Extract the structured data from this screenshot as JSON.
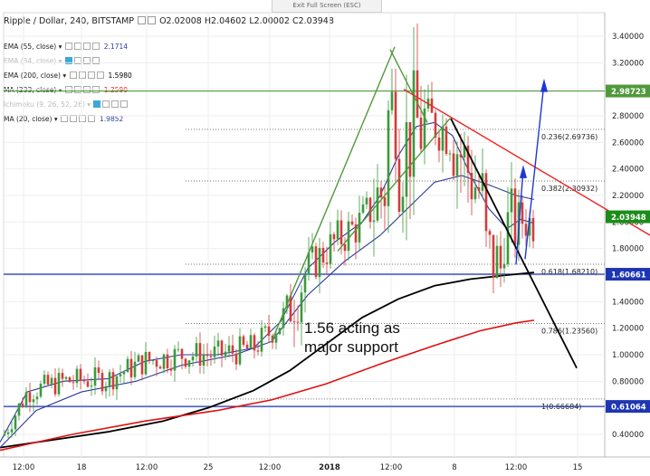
{
  "exit_fullscreen": "Exit Full Screen (ESC)",
  "header": {
    "symbol": "Ripple / Dollar, 240, BITSTAMP",
    "ohlc": {
      "o": "O2.02008",
      "h": "H2.04602",
      "l": "L2.00002",
      "c": "C2.03948"
    }
  },
  "indicators": [
    {
      "label": "EMA (55, close)",
      "value": "2.1714",
      "color": "#2a3a9a"
    },
    {
      "label": "EMA (34, close)",
      "value": "",
      "color": "#bbbbbb",
      "faded": true
    },
    {
      "label": "EMA (200, close)",
      "value": "1.5980",
      "color": "#000000"
    },
    {
      "label": "MA (233, close)",
      "value": "1.2590",
      "color": "#e01010"
    },
    {
      "label": "Ichimoku (9, 26, 52, 26)",
      "value": "",
      "color": "#bbbbbb",
      "faded": true
    },
    {
      "label": "MA (20, close)",
      "value": "1.9852",
      "color": "#2a3a9a"
    }
  ],
  "chart_data": {
    "type": "candlestick",
    "symbol": "XRP/USD",
    "interval": "240",
    "y_axis": {
      "range": [
        0.3,
        3.5
      ],
      "ticks": [
        "3.40000",
        "3.20000",
        "3.00000",
        "2.80000",
        "2.60000",
        "2.40000",
        "2.20000",
        "2.00000",
        "1.80000",
        "1.60000",
        "1.40000",
        "1.20000",
        "1.00000",
        "0.80000",
        "0.60000",
        "0.40000"
      ]
    },
    "x_axis": {
      "ticks": [
        "12:00",
        "18",
        "12:00",
        "25",
        "12:00",
        "2018",
        "12:00",
        "8",
        "12:00",
        "15"
      ]
    },
    "price_labels": [
      {
        "value": "2.98723",
        "price": 2.98723,
        "color": "#4f9a3c"
      },
      {
        "value": "2.03948",
        "price": 2.03948,
        "color": "#1a8c1a"
      },
      {
        "value": "1.60661",
        "price": 1.60661,
        "color": "#1e36b4"
      },
      {
        "value": "0.61064",
        "price": 0.61064,
        "color": "#1e36b4"
      }
    ],
    "fib_levels": [
      {
        "label": "0.236(2.69736)",
        "price": 2.69736
      },
      {
        "label": "0.382(2.30932)",
        "price": 2.30932
      },
      {
        "label": "0.618(1.68210)",
        "price": 1.6821
      },
      {
        "label": "0.786(1.23560)",
        "price": 1.2356
      },
      {
        "label": "1(0.66684)",
        "price": 0.66684
      }
    ],
    "horizontal_lines": [
      {
        "price": 2.98723,
        "color": "#4f9a3c"
      },
      {
        "price": 1.60661,
        "color": "#1e36b4"
      },
      {
        "price": 0.61064,
        "color": "#1e36b4"
      }
    ],
    "annotation": {
      "line1": "1.56 acting as",
      "line2": "major support"
    },
    "series": [
      {
        "name": "EMA (200, close)",
        "color": "#000000",
        "points": [
          [
            0,
            0.3
          ],
          [
            60,
            0.36
          ],
          [
            120,
            0.42
          ],
          [
            180,
            0.5
          ],
          [
            230,
            0.6
          ],
          [
            280,
            0.73
          ],
          [
            320,
            0.88
          ],
          [
            360,
            1.08
          ],
          [
            400,
            1.28
          ],
          [
            440,
            1.42
          ],
          [
            480,
            1.52
          ],
          [
            520,
            1.57
          ],
          [
            560,
            1.6
          ],
          [
            590,
            1.62
          ]
        ]
      },
      {
        "name": "MA (233, close)",
        "color": "#e01010",
        "points": [
          [
            0,
            0.28
          ],
          [
            80,
            0.4
          ],
          [
            160,
            0.5
          ],
          [
            240,
            0.58
          ],
          [
            300,
            0.66
          ],
          [
            360,
            0.78
          ],
          [
            420,
            0.93
          ],
          [
            480,
            1.07
          ],
          [
            530,
            1.18
          ],
          [
            570,
            1.24
          ],
          [
            590,
            1.26
          ]
        ]
      },
      {
        "name": "EMA (55, close)",
        "color": "#2a3a9a",
        "points": [
          [
            0,
            0.3
          ],
          [
            40,
            0.58
          ],
          [
            90,
            0.72
          ],
          [
            150,
            0.8
          ],
          [
            200,
            0.92
          ],
          [
            260,
            1.0
          ],
          [
            300,
            1.1
          ],
          [
            340,
            1.45
          ],
          [
            380,
            1.7
          ],
          [
            420,
            1.9
          ],
          [
            450,
            2.1
          ],
          [
            480,
            2.3
          ],
          [
            510,
            2.35
          ],
          [
            540,
            2.28
          ],
          [
            570,
            2.2
          ],
          [
            590,
            2.17
          ]
        ]
      },
      {
        "name": "MA (20, close)",
        "color": "#2a3a9a",
        "points": [
          [
            0,
            0.34
          ],
          [
            30,
            0.72
          ],
          [
            70,
            0.8
          ],
          [
            120,
            0.82
          ],
          [
            160,
            0.95
          ],
          [
            200,
            1.0
          ],
          [
            240,
            1.0
          ],
          [
            280,
            1.05
          ],
          [
            310,
            1.25
          ],
          [
            340,
            1.65
          ],
          [
            370,
            1.85
          ],
          [
            400,
            2.0
          ],
          [
            420,
            2.2
          ],
          [
            440,
            2.5
          ],
          [
            460,
            2.72
          ],
          [
            480,
            2.75
          ],
          [
            500,
            2.65
          ],
          [
            520,
            2.35
          ],
          [
            540,
            2.1
          ],
          [
            560,
            1.95
          ],
          [
            575,
            2.02
          ],
          [
            590,
            1.99
          ]
        ]
      }
    ]
  }
}
